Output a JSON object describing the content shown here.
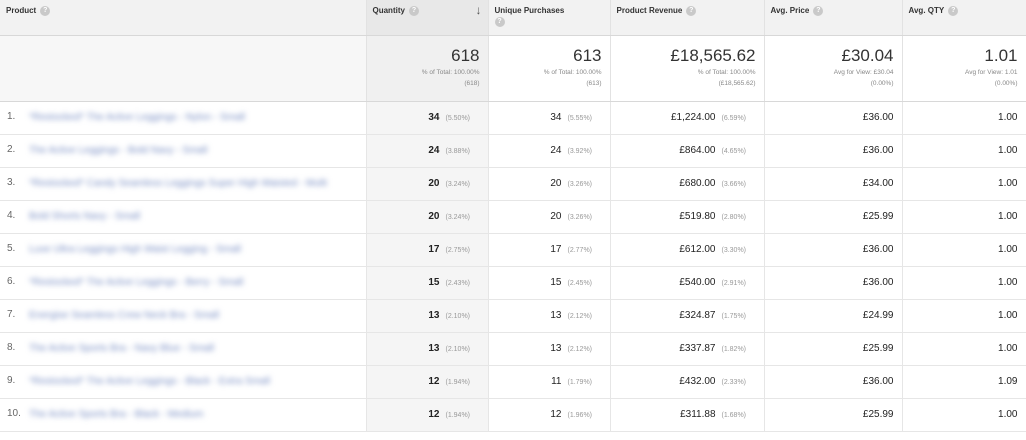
{
  "columns": {
    "product": "Product",
    "quantity": "Quantity",
    "unique_purchases": "Unique Purchases",
    "product_revenue": "Product Revenue",
    "avg_price": "Avg. Price",
    "avg_qty": "Avg. QTY"
  },
  "totals": {
    "quantity": {
      "value": "618",
      "sub1": "% of Total: 100.00%",
      "sub2": "(618)"
    },
    "unique_purchases": {
      "value": "613",
      "sub1": "% of Total: 100.00%",
      "sub2": "(613)"
    },
    "product_revenue": {
      "value": "£18,565.62",
      "sub1": "% of Total: 100.00%",
      "sub2": "(£18,565.62)"
    },
    "avg_price": {
      "value": "£30.04",
      "sub1": "Avg for View: £30.04",
      "sub2": "(0.00%)"
    },
    "avg_qty": {
      "value": "1.01",
      "sub1": "Avg for View: 1.01",
      "sub2": "(0.00%)"
    }
  },
  "rows": [
    {
      "idx": "1.",
      "product": "*Restocked* The Active Leggings - Nylon - Small",
      "qty": "34",
      "qty_pct": "(5.50%)",
      "up": "34",
      "up_pct": "(5.55%)",
      "rev": "£1,224.00",
      "rev_pct": "(6.59%)",
      "avgp": "£36.00",
      "avgq": "1.00"
    },
    {
      "idx": "2.",
      "product": "The Active Leggings - Bold Navy - Small",
      "qty": "24",
      "qty_pct": "(3.88%)",
      "up": "24",
      "up_pct": "(3.92%)",
      "rev": "£864.00",
      "rev_pct": "(4.65%)",
      "avgp": "£36.00",
      "avgq": "1.00"
    },
    {
      "idx": "3.",
      "product": "*Restocked* Candy Seamless Leggings Super High Waisted - Multi",
      "qty": "20",
      "qty_pct": "(3.24%)",
      "up": "20",
      "up_pct": "(3.26%)",
      "rev": "£680.00",
      "rev_pct": "(3.66%)",
      "avgp": "£34.00",
      "avgq": "1.00"
    },
    {
      "idx": "4.",
      "product": "Bold Shorts Navy - Small",
      "qty": "20",
      "qty_pct": "(3.24%)",
      "up": "20",
      "up_pct": "(3.26%)",
      "rev": "£519.80",
      "rev_pct": "(2.80%)",
      "avgp": "£25.99",
      "avgq": "1.00"
    },
    {
      "idx": "5.",
      "product": "Luxe Ultra Leggings High Waist Legging - Small",
      "qty": "17",
      "qty_pct": "(2.75%)",
      "up": "17",
      "up_pct": "(2.77%)",
      "rev": "£612.00",
      "rev_pct": "(3.30%)",
      "avgp": "£36.00",
      "avgq": "1.00"
    },
    {
      "idx": "6.",
      "product": "*Restocked* The Active Leggings - Berry - Small",
      "qty": "15",
      "qty_pct": "(2.43%)",
      "up": "15",
      "up_pct": "(2.45%)",
      "rev": "£540.00",
      "rev_pct": "(2.91%)",
      "avgp": "£36.00",
      "avgq": "1.00"
    },
    {
      "idx": "7.",
      "product": "Energise Seamless Crew Neck Bra - Small",
      "qty": "13",
      "qty_pct": "(2.10%)",
      "up": "13",
      "up_pct": "(2.12%)",
      "rev": "£324.87",
      "rev_pct": "(1.75%)",
      "avgp": "£24.99",
      "avgq": "1.00"
    },
    {
      "idx": "8.",
      "product": "The Active Sports Bra - Navy Blue - Small",
      "qty": "13",
      "qty_pct": "(2.10%)",
      "up": "13",
      "up_pct": "(2.12%)",
      "rev": "£337.87",
      "rev_pct": "(1.82%)",
      "avgp": "£25.99",
      "avgq": "1.00"
    },
    {
      "idx": "9.",
      "product": "*Restocked* The Active Leggings - Black - Extra Small",
      "qty": "12",
      "qty_pct": "(1.94%)",
      "up": "11",
      "up_pct": "(1.79%)",
      "rev": "£432.00",
      "rev_pct": "(2.33%)",
      "avgp": "£36.00",
      "avgq": "1.09"
    },
    {
      "idx": "10.",
      "product": "The Active Sports Bra - Black - Medium",
      "qty": "12",
      "qty_pct": "(1.94%)",
      "up": "12",
      "up_pct": "(1.96%)",
      "rev": "£311.88",
      "rev_pct": "(1.68%)",
      "avgp": "£25.99",
      "avgq": "1.00"
    }
  ]
}
